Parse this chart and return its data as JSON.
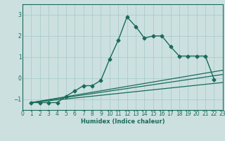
{
  "xlabel": "Humidex (Indice chaleur)",
  "ylabel": "",
  "bg_color": "#cce0e0",
  "grid_color": "#aacccc",
  "line_color": "#1a6b5a",
  "xlim": [
    0,
    23
  ],
  "ylim": [
    -1.5,
    3.5
  ],
  "yticks": [
    -1,
    0,
    1,
    2,
    3
  ],
  "xticks": [
    0,
    1,
    2,
    3,
    4,
    5,
    6,
    7,
    8,
    9,
    10,
    11,
    12,
    13,
    14,
    15,
    16,
    17,
    18,
    19,
    20,
    21,
    22,
    23
  ],
  "series": [
    {
      "x": [
        1,
        2,
        3,
        4,
        5,
        6,
        7,
        8,
        9,
        10,
        11,
        12,
        13,
        14,
        15,
        16,
        17,
        18,
        19,
        20,
        21,
        22
      ],
      "y": [
        -1.15,
        -1.15,
        -1.15,
        -1.15,
        -0.85,
        -0.6,
        -0.35,
        -0.35,
        -0.1,
        0.9,
        1.8,
        2.9,
        2.45,
        1.9,
        2.0,
        2.0,
        1.5,
        1.05,
        1.05,
        1.05,
        1.05,
        -0.05
      ],
      "marker": "D",
      "markersize": 2.5,
      "lw": 1.0
    },
    {
      "x": [
        1,
        23
      ],
      "y": [
        -1.15,
        0.38
      ],
      "lw": 0.9
    },
    {
      "x": [
        1,
        23
      ],
      "y": [
        -1.15,
        0.18
      ],
      "lw": 0.9
    },
    {
      "x": [
        1,
        23
      ],
      "y": [
        -1.15,
        -0.2
      ],
      "lw": 0.9
    }
  ]
}
